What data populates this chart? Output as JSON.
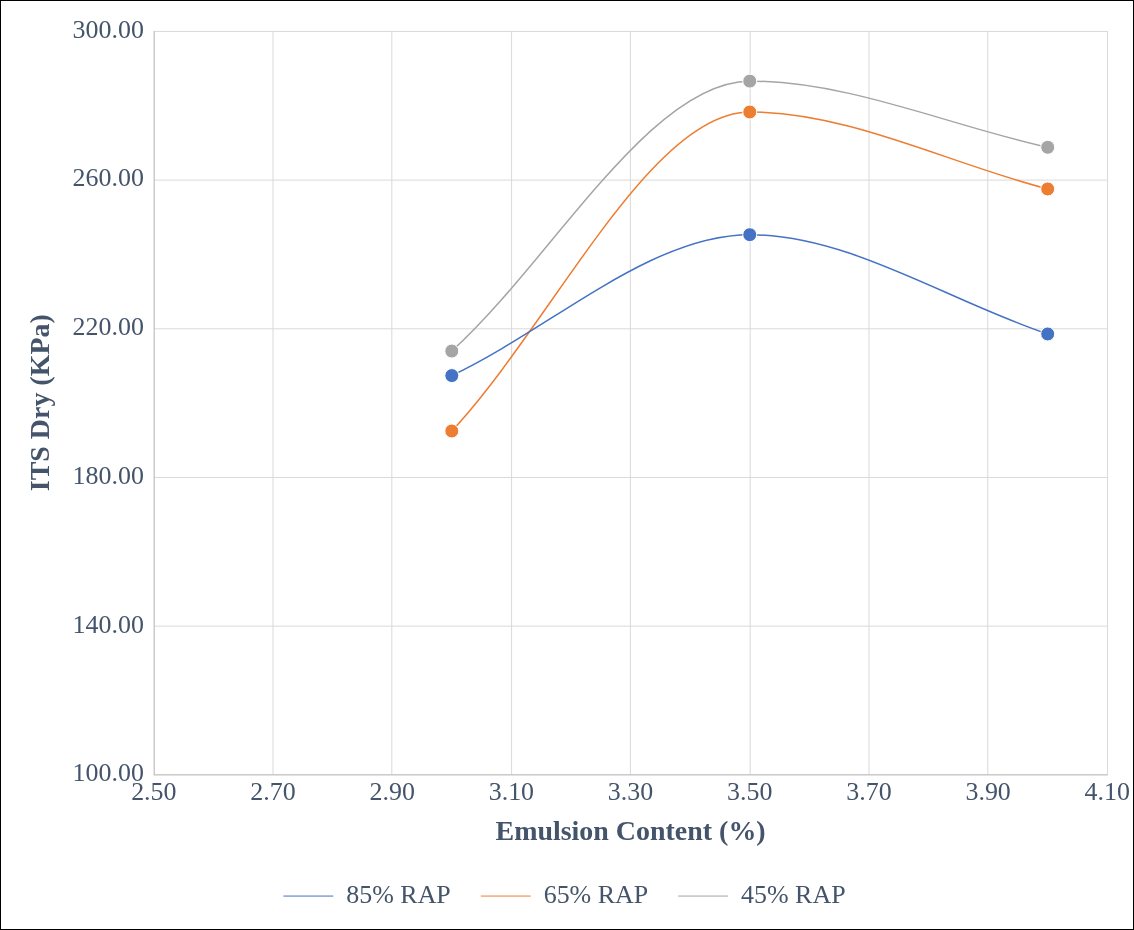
{
  "chart_data": {
    "type": "line",
    "xlabel": "Emulsion Content (%)",
    "ylabel": "ITS Dry (KPa)",
    "x": [
      3.0,
      3.5,
      4.0
    ],
    "series": [
      {
        "name": "85% RAP",
        "color": "#4472c4",
        "values": [
          207.3,
          245.2,
          218.5
        ]
      },
      {
        "name": "65% RAP",
        "color": "#ed7d31",
        "values": [
          192.4,
          278.2,
          257.5
        ]
      },
      {
        "name": "45% RAP",
        "color": "#a5a5a5",
        "values": [
          213.9,
          286.5,
          268.7
        ]
      }
    ],
    "xlim": [
      2.5,
      4.1
    ],
    "xticks": [
      {
        "value": 2.5,
        "label": "2.50"
      },
      {
        "value": 2.7,
        "label": "2.70"
      },
      {
        "value": 2.9,
        "label": "2.90"
      },
      {
        "value": 3.1,
        "label": "3.10"
      },
      {
        "value": 3.3,
        "label": "3.30"
      },
      {
        "value": 3.5,
        "label": "3.50"
      },
      {
        "value": 3.7,
        "label": "3.70"
      },
      {
        "value": 3.9,
        "label": "3.90"
      },
      {
        "value": 4.1,
        "label": "4.10"
      }
    ],
    "ylim": [
      100,
      300
    ],
    "yticks": [
      {
        "value": 100,
        "label": "100.00"
      },
      {
        "value": 140,
        "label": "140.00"
      },
      {
        "value": 180,
        "label": "180.00"
      },
      {
        "value": 220,
        "label": "220.00"
      },
      {
        "value": 260,
        "label": "260.00"
      },
      {
        "value": 300,
        "label": "300.00"
      }
    ],
    "grid": true,
    "legend": "bottom",
    "marker": "circle",
    "line_style": "solid"
  }
}
